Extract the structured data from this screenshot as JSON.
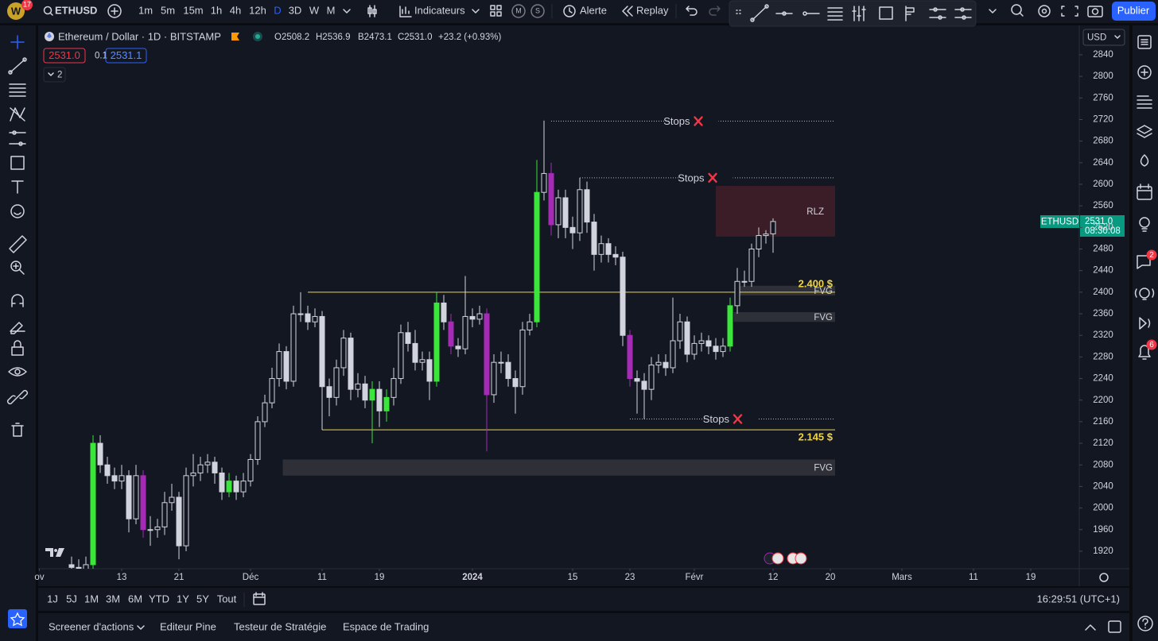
{
  "toolbar": {
    "badge": "17",
    "symbol": "ETHUSD",
    "intervals": [
      "1m",
      "5m",
      "15m",
      "1h",
      "4h",
      "12h",
      "D",
      "3D",
      "W",
      "M"
    ],
    "indicators": "Indicateurs",
    "modes": [
      "M",
      "S"
    ],
    "alert": "Alerte",
    "replay": "Replay",
    "publish": "Publier"
  },
  "legend": {
    "title": "Ethereum / Dollar · 1D · BITSTAMP",
    "ohlc": [
      "O2508.2",
      "H2536.9",
      "B2473.1",
      "C2531.0"
    ],
    "change": "+23.2 (+0.93%)",
    "sell": "2531.0",
    "spread": "0.1",
    "buy": "2531.1",
    "collapsed": "2"
  },
  "chart_data": {
    "type": "candlestick",
    "ylim": [
      1889,
      2890
    ],
    "yticks": [
      1920,
      1960,
      2000,
      2040,
      2080,
      2120,
      2160,
      2200,
      2240,
      2280,
      2320,
      2360,
      2400,
      2440,
      2480,
      2520,
      2560,
      2600,
      2640,
      2680,
      2720,
      2760,
      2800,
      2840
    ],
    "xlim": [
      -4.667,
      140.556
    ],
    "xticks": [
      {
        "value": -4.5,
        "label": "ov"
      },
      {
        "value": 7,
        "label": "13"
      },
      {
        "value": 15,
        "label": "21"
      },
      {
        "value": 25,
        "label": "Déc"
      },
      {
        "value": 35,
        "label": "11"
      },
      {
        "value": 43,
        "label": "19"
      },
      {
        "value": 56,
        "label": "2024"
      },
      {
        "value": 70,
        "label": "15"
      },
      {
        "value": 78,
        "label": "23"
      },
      {
        "value": 87,
        "label": "Févr"
      },
      {
        "value": 98,
        "label": "12"
      },
      {
        "value": 106,
        "label": "20"
      },
      {
        "value": 116,
        "label": "Mars"
      },
      {
        "value": 126,
        "label": "11"
      },
      {
        "value": 134,
        "label": "19"
      }
    ],
    "up_color": "#131722",
    "down_color": "#d1d4dc",
    "outline_color": "#d1d4dc",
    "highlights": [
      {
        "color": "#39e639",
        "indices": [
          3,
          22,
          42,
          44,
          51,
          65,
          92
        ]
      },
      {
        "color": "#a52bb5",
        "indices": [
          10,
          53,
          58,
          67,
          78
        ]
      }
    ],
    "open": [
      1895,
      1890,
      1885,
      1895,
      2120,
      2080,
      2060,
      2050,
      2060,
      1980,
      2060,
      1960,
      1960,
      1965,
      2010,
      2020,
      1930,
      2060,
      2065,
      2080,
      2085,
      2065,
      2030,
      2050,
      2030,
      2050,
      2090,
      2160,
      2195,
      2240,
      2290,
      2235,
      2360,
      2360,
      2345,
      2355,
      2225,
      2205,
      2260,
      2315,
      2220,
      2230,
      2200,
      2220,
      2180,
      2205,
      2240,
      2325,
      2305,
      2270,
      2275,
      2235,
      2380,
      2345,
      2300,
      2295,
      2355,
      2350,
      2360,
      2210,
      2270,
      2270,
      2240,
      2225,
      2330,
      2345,
      2585,
      2620,
      2525,
      2575,
      2520,
      2510,
      2590,
      2530,
      2470,
      2490,
      2470,
      2465,
      2320,
      2240,
      2235,
      2220,
      2265,
      2270,
      2260,
      2310,
      2345,
      2285,
      2305,
      2310,
      2300,
      2290,
      2300,
      2375,
      2420,
      2420,
      2480,
      2505,
      2508.2
    ],
    "high": [
      1910,
      1905,
      1910,
      2135,
      2135,
      2095,
      2075,
      2080,
      2070,
      2080,
      2070,
      1985,
      1980,
      2030,
      2045,
      2030,
      2075,
      2100,
      2095,
      2100,
      2095,
      2075,
      2065,
      2060,
      2065,
      2100,
      2170,
      2210,
      2260,
      2305,
      2300,
      2375,
      2400,
      2375,
      2370,
      2365,
      2240,
      2275,
      2330,
      2325,
      2250,
      2245,
      2235,
      2235,
      2220,
      2260,
      2340,
      2345,
      2330,
      2290,
      2290,
      2400,
      2395,
      2360,
      2315,
      2430,
      2370,
      2375,
      2370,
      2285,
      2290,
      2285,
      2255,
      2345,
      2360,
      2645,
      2718,
      2640,
      2590,
      2590,
      2540,
      2612,
      2605,
      2545,
      2505,
      2500,
      2485,
      2475,
      2330,
      2255,
      2250,
      2280,
      2285,
      2285,
      2390,
      2360,
      2355,
      2320,
      2325,
      2320,
      2315,
      2315,
      2390,
      2445,
      2440,
      2490,
      2520,
      2515,
      2536.9
    ],
    "low": [
      1875,
      1870,
      1880,
      1885,
      2065,
      2045,
      2035,
      2035,
      1955,
      1970,
      1945,
      1930,
      1945,
      1950,
      1995,
      1905,
      1920,
      2040,
      2050,
      2065,
      2045,
      2015,
      2020,
      2015,
      2020,
      2040,
      2080,
      2150,
      2185,
      2225,
      2220,
      2225,
      2345,
      2330,
      2335,
      2145,
      2170,
      2190,
      2245,
      2200,
      2205,
      2185,
      2120,
      2150,
      2160,
      2190,
      2230,
      2290,
      2255,
      2255,
      2200,
      2225,
      2330,
      2285,
      2280,
      2285,
      2335,
      2340,
      2105,
      2195,
      2250,
      2225,
      2175,
      2210,
      2320,
      2335,
      2570,
      2505,
      2500,
      2500,
      2480,
      2495,
      2510,
      2440,
      2455,
      2455,
      2450,
      2300,
      2225,
      2175,
      2165,
      2200,
      2250,
      2245,
      2250,
      2295,
      2270,
      2275,
      2290,
      2285,
      2275,
      2280,
      2290,
      2360,
      2410,
      2410,
      2465,
      2490,
      2473.1
    ],
    "close": [
      1890,
      1885,
      1895,
      2120,
      2080,
      2060,
      2050,
      2060,
      1980,
      2060,
      1960,
      1960,
      1965,
      2010,
      2020,
      1930,
      2060,
      2065,
      2080,
      2085,
      2065,
      2030,
      2050,
      2030,
      2050,
      2090,
      2160,
      2195,
      2240,
      2290,
      2235,
      2360,
      2360,
      2345,
      2355,
      2225,
      2205,
      2260,
      2315,
      2220,
      2230,
      2200,
      2220,
      2180,
      2205,
      2240,
      2325,
      2305,
      2270,
      2275,
      2235,
      2380,
      2345,
      2300,
      2295,
      2355,
      2350,
      2360,
      2210,
      2270,
      2270,
      2240,
      2225,
      2330,
      2345,
      2585,
      2620,
      2525,
      2575,
      2520,
      2510,
      2590,
      2530,
      2470,
      2490,
      2470,
      2465,
      2320,
      2240,
      2235,
      2220,
      2265,
      2270,
      2260,
      2310,
      2345,
      2285,
      2305,
      2310,
      2300,
      2290,
      2300,
      2375,
      2420,
      2420,
      2480,
      2505,
      2507.8,
      2531
    ],
    "stops": [
      {
        "label": "Stops",
        "value": 2717,
        "from": 67
      },
      {
        "label": "Stops",
        "value": 2612,
        "from": 71
      },
      {
        "label": "Stops",
        "value": 2165,
        "from": 78
      }
    ],
    "levels": [
      {
        "label": "2.400 $",
        "value": 2400,
        "from": 33,
        "color": "#f2d43d"
      },
      {
        "label": "2.145 $",
        "value": 2145,
        "from": 35,
        "color": "#f2d43d"
      }
    ],
    "zones": [
      {
        "label": "RLZ",
        "top": 2597,
        "bottom": 2503,
        "from": 90,
        "color": "#3b1d28"
      },
      {
        "label": "FVG",
        "top": 2412,
        "bottom": 2394,
        "from": 93,
        "color": "#2e2f37"
      },
      {
        "label": "FVG",
        "top": 2363,
        "bottom": 2345,
        "from": 92.5,
        "color": "#2e2f37"
      },
      {
        "label": "FVG",
        "top": 2090,
        "bottom": 2060,
        "from": 29.5,
        "color": "#2e2f37"
      }
    ]
  },
  "price_axis": {
    "currency": "USD",
    "symbol_tag": "ETHUSD",
    "last_price": "2531.0",
    "countdown": "08:30:08"
  },
  "range_bar": {
    "ranges": [
      "1J",
      "5J",
      "1M",
      "3M",
      "6M",
      "YTD",
      "1Y",
      "5Y",
      "Tout"
    ],
    "clock": "16:29:51 (UTC+1)"
  },
  "panel": {
    "tabs": [
      "Screener d'actions",
      "Editeur Pine",
      "Testeur de Stratégie",
      "Espace de Trading"
    ]
  },
  "sidebar": {
    "badges": [
      "2",
      "6"
    ]
  }
}
